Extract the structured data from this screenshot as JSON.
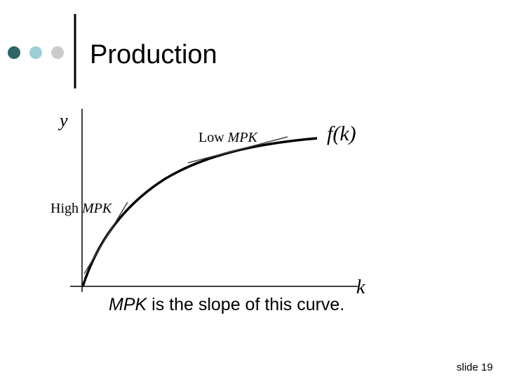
{
  "header": {
    "title": "Production"
  },
  "diagram": {
    "y_axis_label": "y",
    "x_axis_label": "k",
    "curve_label": "f(k)",
    "low_label": {
      "prefix": "Low",
      "term": "MPK"
    },
    "high_label": {
      "prefix": "High",
      "term": "MPK"
    }
  },
  "caption": {
    "term": "MPK",
    "rest": " is the slope of this curve."
  },
  "footer": {
    "slide": "slide 19"
  }
}
